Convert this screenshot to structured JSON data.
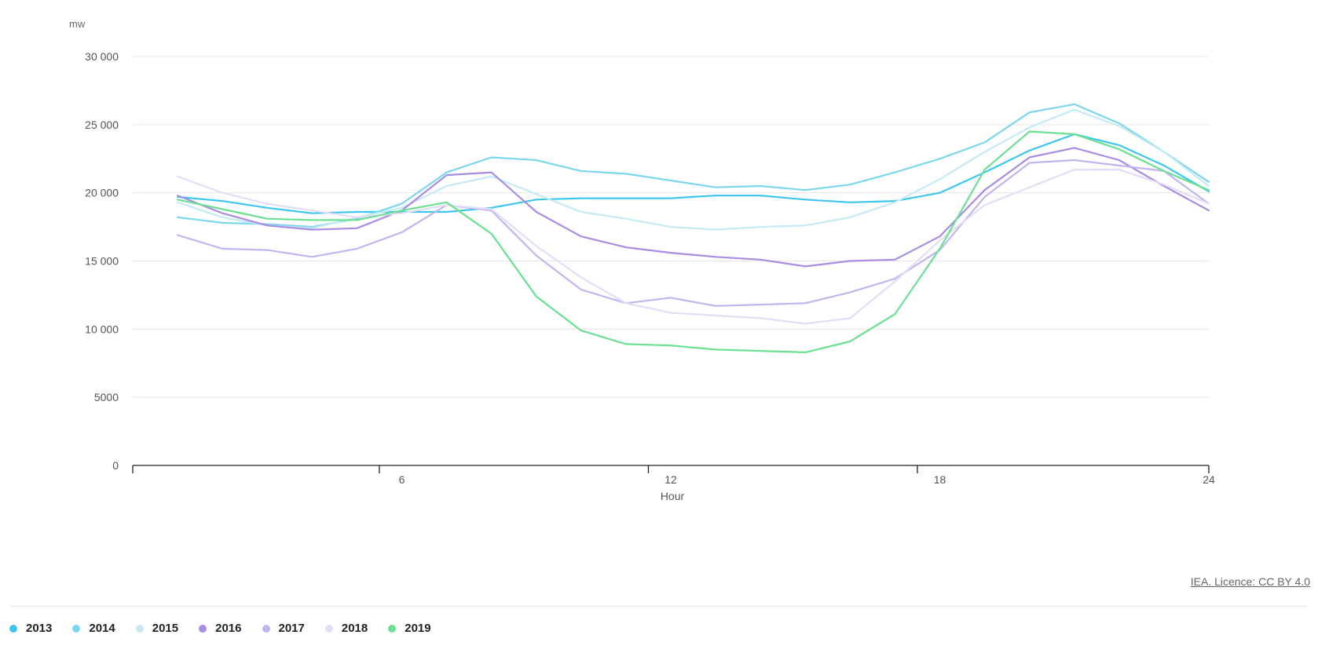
{
  "chart_data": {
    "type": "line",
    "unit_label": "mw",
    "xlabel": "Hour",
    "ylabel": "",
    "xlim": [
      0,
      24
    ],
    "ylim": [
      0,
      30000
    ],
    "x_ticks": [
      6,
      12,
      18,
      24
    ],
    "x_tick_labels": [
      "6",
      "12",
      "18",
      "24"
    ],
    "y_ticks": [
      0,
      5000,
      10000,
      15000,
      20000,
      25000,
      30000
    ],
    "y_tick_labels": [
      "0",
      "5000",
      "10 000",
      "15 000",
      "20 000",
      "25 000",
      "30 000"
    ],
    "grid": true,
    "legend_position": "bottom-left",
    "x": [
      1,
      2,
      3,
      4,
      5,
      6,
      7,
      8,
      9,
      10,
      11,
      12,
      13,
      14,
      15,
      16,
      17,
      18,
      19,
      20,
      21,
      22,
      23,
      24
    ],
    "series": [
      {
        "name": "2013",
        "color": "#3ec6ee",
        "values": [
          19700,
          19400,
          18900,
          18500,
          18600,
          18600,
          18600,
          18900,
          19500,
          19600,
          19600,
          19600,
          19800,
          19800,
          19500,
          19300,
          19400,
          20000,
          21500,
          23100,
          24300,
          23500,
          22000,
          20100
        ]
      },
      {
        "name": "2014",
        "color": "#7ad7ec",
        "values": [
          18200,
          17800,
          17700,
          17500,
          18100,
          19200,
          21500,
          22600,
          22400,
          21600,
          21400,
          20900,
          20400,
          20500,
          20200,
          20600,
          21500,
          22500,
          23700,
          25900,
          26500,
          25100,
          23000,
          20800
        ]
      },
      {
        "name": "2015",
        "color": "#c4eaf5",
        "values": [
          19300,
          18200,
          17600,
          17400,
          18200,
          18900,
          20500,
          21200,
          19900,
          18600,
          18100,
          17500,
          17300,
          17500,
          17600,
          18200,
          19300,
          21000,
          23000,
          24800,
          26100,
          24900,
          23000,
          20500
        ]
      },
      {
        "name": "2016",
        "color": "#a98ce3",
        "values": [
          19800,
          18500,
          17600,
          17300,
          17400,
          18700,
          21300,
          21500,
          18600,
          16800,
          16000,
          15600,
          15300,
          15100,
          14600,
          15000,
          15100,
          16800,
          20200,
          22600,
          23300,
          22400,
          20500,
          18700
        ]
      },
      {
        "name": "2017",
        "color": "#c2b5ef",
        "values": [
          16900,
          15900,
          15800,
          15300,
          15900,
          17100,
          19100,
          18700,
          15400,
          12900,
          11900,
          12300,
          11700,
          11800,
          11900,
          12700,
          13700,
          15800,
          19700,
          22200,
          22400,
          22000,
          21600,
          19200
        ]
      },
      {
        "name": "2018",
        "color": "#e3ddf8",
        "values": [
          21200,
          20000,
          19200,
          18700,
          18200,
          18500,
          19100,
          18800,
          16100,
          13800,
          11900,
          11200,
          11000,
          10800,
          10400,
          10800,
          13500,
          16500,
          19100,
          20400,
          21700,
          21700,
          20600,
          19200
        ]
      },
      {
        "name": "2019",
        "color": "#6ce091",
        "values": [
          19500,
          18800,
          18100,
          18000,
          18000,
          18700,
          19300,
          17000,
          12400,
          9900,
          8900,
          8800,
          8500,
          8400,
          8300,
          9100,
          11100,
          15900,
          21700,
          24500,
          24300,
          23200,
          21600,
          20200
        ]
      }
    ]
  },
  "credit": "IEA. Licence: CC BY 4.0"
}
